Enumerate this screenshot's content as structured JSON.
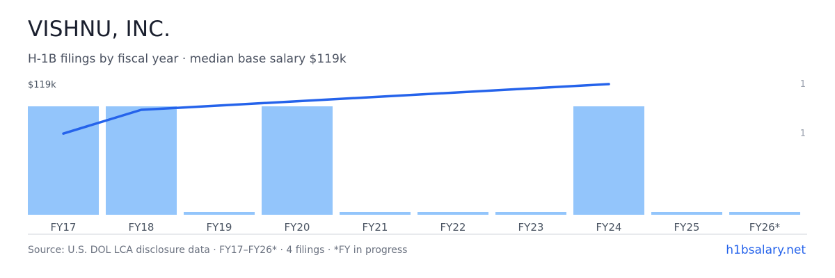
{
  "title": "VISHNU, INC.",
  "subtitle": "H-1B filings by fiscal year · median base salary $119k",
  "footer": {
    "source": "Source: U.S. DOL LCA disclosure data · FY17–FY26* · 4 filings · *FY in progress",
    "brand": "h1bsalary.net"
  },
  "colors": {
    "bar": "#93c5fb",
    "line": "#2563eb",
    "axis": "#d1d5db",
    "tick_text": "#4b5563",
    "right_axis_text": "#9ca3af"
  },
  "chart_data": {
    "type": "bar",
    "categories": [
      "FY17",
      "FY18",
      "FY19",
      "FY20",
      "FY21",
      "FY22",
      "FY23",
      "FY24",
      "FY25",
      "FY26*"
    ],
    "series": [
      {
        "type": "bar",
        "axis": "right",
        "values": [
          1,
          1,
          0,
          1,
          0,
          0,
          0,
          1,
          0,
          0
        ]
      },
      {
        "type": "line",
        "axis": "left",
        "points": [
          {
            "category": "FY17",
            "value": 94
          },
          {
            "category": "FY18",
            "value": 106
          },
          {
            "category": "FY24",
            "value": 119
          }
        ]
      }
    ],
    "left_axis": {
      "ticks": [
        "$119k"
      ]
    },
    "right_axis": {
      "ticks": [
        "1",
        "1"
      ]
    },
    "grid": false,
    "legend": "none"
  }
}
